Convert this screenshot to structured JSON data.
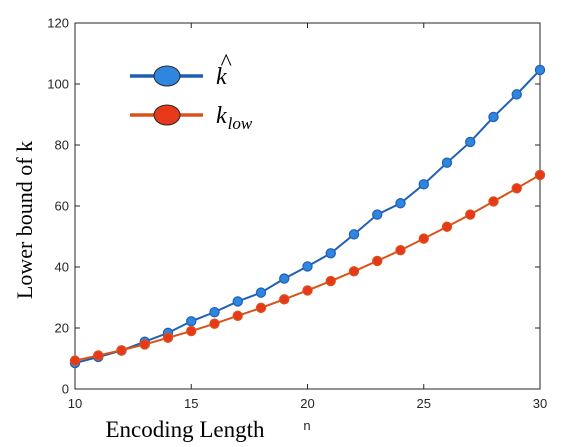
{
  "chart_data": {
    "type": "line",
    "x": [
      10,
      11,
      12,
      13,
      14,
      15,
      16,
      17,
      18,
      19,
      20,
      21,
      22,
      23,
      24,
      25,
      26,
      27,
      28,
      29,
      30
    ],
    "series": [
      {
        "name": "k̂",
        "color": "#1f5fb4",
        "marker_color": "#2e86de",
        "values": [
          8.5,
          10.5,
          12.6,
          15.5,
          18.4,
          22.2,
          25.2,
          28.7,
          31.6,
          36.2,
          40.2,
          44.5,
          50.7,
          57.2,
          60.9,
          67.1,
          74.2,
          81.0,
          89.2,
          96.6,
          104.6
        ]
      },
      {
        "name": "k_low",
        "color": "#d95319",
        "marker_color": "#e8381b",
        "values": [
          9.3,
          11.0,
          12.7,
          14.6,
          16.8,
          19.0,
          21.4,
          24.0,
          26.6,
          29.4,
          32.3,
          35.4,
          38.6,
          42.0,
          45.5,
          49.3,
          53.2,
          57.2,
          61.5,
          65.8,
          70.2
        ]
      }
    ],
    "xlim": [
      10,
      30
    ],
    "ylim": [
      0,
      120
    ],
    "xticks": [
      10,
      15,
      20,
      25,
      30
    ],
    "yticks": [
      0,
      20,
      40,
      60,
      80,
      100,
      120
    ],
    "ylabel": "Lower bound of k",
    "xlabel": "Encoding Length",
    "xlabel_small": "n",
    "legend": {
      "placement": "top-left",
      "entries": [
        {
          "base": "k",
          "hat": "^",
          "sub": ""
        },
        {
          "base": "k",
          "hat": "",
          "sub": "low"
        }
      ]
    },
    "grid": false
  }
}
